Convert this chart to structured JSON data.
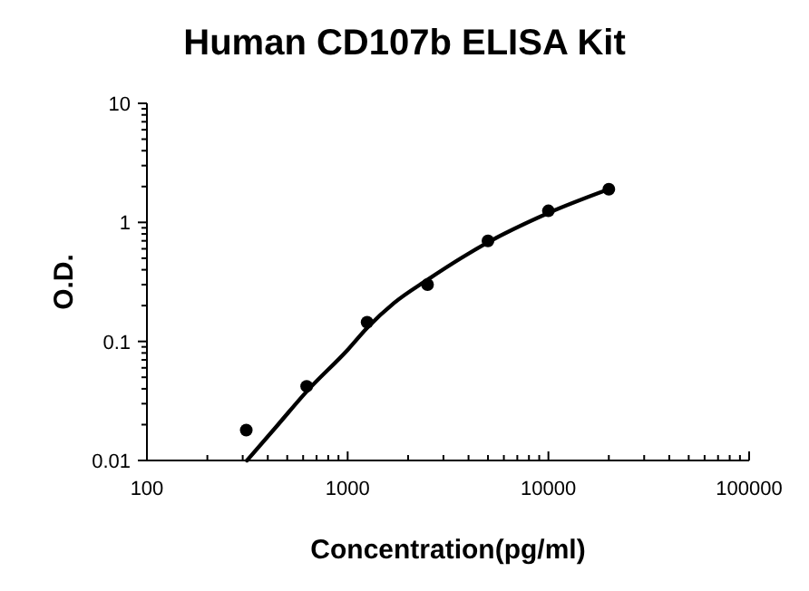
{
  "chart_data": {
    "type": "scatter",
    "title": "Human CD107b ELISA Kit",
    "xlabel": "Concentration(pg/ml)",
    "ylabel": "O.D.",
    "log": "xy",
    "grid": false,
    "marker": "circle",
    "xlim": [
      100,
      100000
    ],
    "ylim": [
      0.01,
      10
    ],
    "xticks": [
      100,
      {
        "value": 200,
        "label": null
      },
      {
        "value": 300,
        "label": null
      },
      {
        "value": 400,
        "label": null
      },
      {
        "value": 500,
        "label": null
      },
      {
        "value": 600,
        "label": null
      },
      {
        "value": 700,
        "label": null
      },
      {
        "value": 800,
        "label": null
      },
      {
        "value": 900,
        "label": null
      },
      1000,
      {
        "value": 2000,
        "label": null
      },
      {
        "value": 3000,
        "label": null
      },
      {
        "value": 4000,
        "label": null
      },
      {
        "value": 5000,
        "label": null
      },
      {
        "value": 6000,
        "label": null
      },
      {
        "value": 7000,
        "label": null
      },
      {
        "value": 8000,
        "label": null
      },
      {
        "value": 9000,
        "label": null
      },
      10000,
      {
        "value": 20000,
        "label": null
      },
      {
        "value": 30000,
        "label": null
      },
      {
        "value": 40000,
        "label": null
      },
      {
        "value": 50000,
        "label": null
      },
      {
        "value": 60000,
        "label": null
      },
      {
        "value": 70000,
        "label": null
      },
      {
        "value": 80000,
        "label": null
      },
      {
        "value": 90000,
        "label": null
      },
      100000
    ],
    "yticks": [
      0.01,
      {
        "value": 0.02,
        "label": null
      },
      {
        "value": 0.03,
        "label": null
      },
      {
        "value": 0.04,
        "label": null
      },
      {
        "value": 0.05,
        "label": null
      },
      {
        "value": 0.06,
        "label": null
      },
      {
        "value": 0.07,
        "label": null
      },
      {
        "value": 0.08,
        "label": null
      },
      {
        "value": 0.09,
        "label": null
      },
      0.1,
      {
        "value": 0.2,
        "label": null
      },
      {
        "value": 0.3,
        "label": null
      },
      {
        "value": 0.4,
        "label": null
      },
      {
        "value": 0.5,
        "label": null
      },
      {
        "value": 0.6,
        "label": null
      },
      {
        "value": 0.7,
        "label": null
      },
      {
        "value": 0.8,
        "label": null
      },
      {
        "value": 0.9,
        "label": null
      },
      1,
      {
        "value": 2,
        "label": null
      },
      {
        "value": 3,
        "label": null
      },
      {
        "value": 4,
        "label": null
      },
      {
        "value": 5,
        "label": null
      },
      {
        "value": 6,
        "label": null
      },
      {
        "value": 7,
        "label": null
      },
      {
        "value": 8,
        "label": null
      },
      {
        "value": 9,
        "label": null
      },
      10
    ],
    "series": [
      {
        "color": "#000000",
        "x": [
          312.5,
          625,
          1250,
          2500,
          5000,
          10000,
          20000
        ],
        "values": [
          0.018,
          0.042,
          0.145,
          0.3,
          0.7,
          1.25,
          1.9
        ]
      },
      {
        "type": "line",
        "color": "#000000",
        "marker": "none",
        "line_style": "solid",
        "x": [
          315,
          450,
          625,
          1000,
          1250,
          1700,
          2500,
          5000,
          10000,
          20000
        ],
        "values": [
          0.01,
          0.02,
          0.038,
          0.085,
          0.13,
          0.21,
          0.33,
          0.68,
          1.2,
          1.9
        ]
      }
    ]
  }
}
